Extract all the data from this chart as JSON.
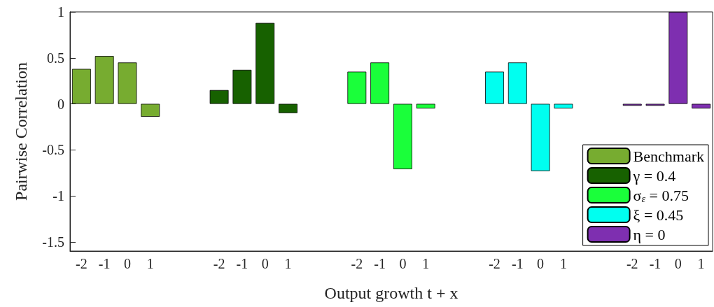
{
  "chart_data": {
    "type": "bar",
    "xlabel": "Output growth t + x",
    "ylabel": "Pairwise Correlation",
    "categories": [
      "-2",
      "-1",
      "0",
      "1",
      null,
      null,
      "-2",
      "-1",
      "0",
      "1",
      null,
      null,
      "-2",
      "-1",
      "0",
      "1",
      null,
      null,
      "-2",
      "-1",
      "0",
      "1",
      null,
      null,
      "-2",
      "-1",
      "0",
      "1"
    ],
    "series": [
      {
        "name": "Benchmark",
        "color": "#77ac30",
        "values": [
          0.38,
          0.52,
          0.45,
          -0.14,
          null,
          null,
          null,
          null,
          null,
          null,
          null,
          null,
          null,
          null,
          null,
          null,
          null,
          null,
          null,
          null,
          null,
          null,
          null,
          null,
          null,
          null,
          null,
          null
        ]
      },
      {
        "name": "γ = 0.4",
        "color": "#176100",
        "values": [
          null,
          null,
          null,
          null,
          null,
          null,
          0.15,
          0.37,
          0.88,
          -0.1,
          null,
          null,
          null,
          null,
          null,
          null,
          null,
          null,
          null,
          null,
          null,
          null,
          null,
          null,
          null,
          null,
          null,
          null
        ]
      },
      {
        "name": "σ$_{ε}$ = 0.75",
        "color": "#1aff3a",
        "values": [
          null,
          null,
          null,
          null,
          null,
          null,
          null,
          null,
          null,
          null,
          null,
          null,
          0.35,
          0.45,
          -0.71,
          -0.05,
          null,
          null,
          null,
          null,
          null,
          null,
          null,
          null,
          null,
          null,
          null,
          null
        ]
      },
      {
        "name": "ξ = 0.45",
        "color": "#00fff0",
        "values": [
          null,
          null,
          null,
          null,
          null,
          null,
          null,
          null,
          null,
          null,
          null,
          null,
          null,
          null,
          null,
          null,
          null,
          null,
          0.35,
          0.45,
          -0.73,
          -0.05,
          null,
          null,
          null,
          null,
          null,
          null
        ]
      },
      {
        "name": "η = 0",
        "color": "#7e2fb0",
        "values": [
          null,
          null,
          null,
          null,
          null,
          null,
          null,
          null,
          null,
          null,
          null,
          null,
          null,
          null,
          null,
          null,
          null,
          null,
          null,
          null,
          null,
          null,
          null,
          null,
          -0.02,
          -0.02,
          1,
          -0.05
        ]
      }
    ],
    "ylim": [
      -1.6,
      1
    ],
    "yticks": [
      -1.5,
      -1,
      -0.5,
      0,
      0.5,
      1
    ],
    "grid": false,
    "legend": "bottom right"
  }
}
